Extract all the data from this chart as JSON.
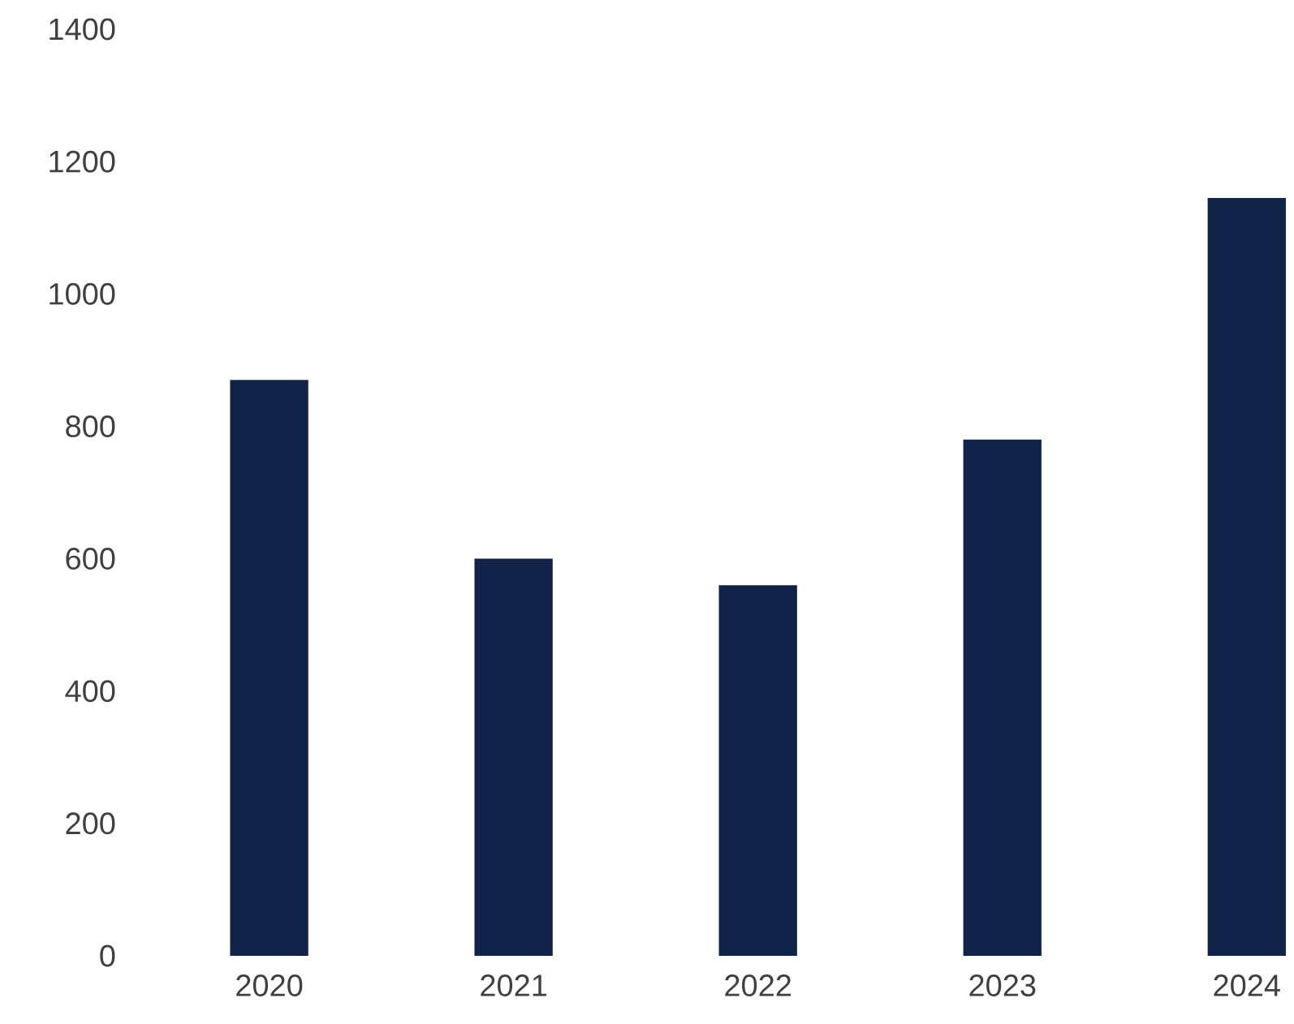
{
  "chart_data": {
    "type": "bar",
    "categories": [
      "2020",
      "2021",
      "2022",
      "2023",
      "2024"
    ],
    "values": [
      870,
      600,
      560,
      780,
      1145
    ],
    "color": "#10244a",
    "ylim": [
      0,
      1400
    ],
    "yticks": [
      0,
      200,
      400,
      600,
      800,
      1000,
      1200,
      1400
    ]
  }
}
